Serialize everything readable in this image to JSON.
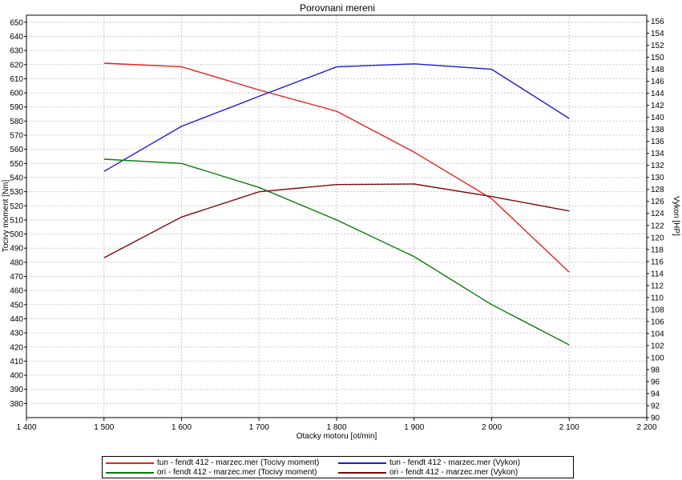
{
  "chart_data": {
    "type": "line",
    "title": "Porovnani mereni",
    "xlabel": "Otacky motoru [ot/min]",
    "ylabel_left": "Tocivy moment [Nm]",
    "ylabel_right": "Vykon [HP]",
    "xlim": [
      1400,
      2200
    ],
    "ylim_left": [
      370,
      655
    ],
    "ylim_right": [
      90,
      157
    ],
    "x_ticks": [
      "1 400",
      "1 500",
      "1 600",
      "1 700",
      "1 800",
      "1 900",
      "2 000",
      "2 100",
      "2 200"
    ],
    "x_tick_values": [
      1400,
      1500,
      1600,
      1700,
      1800,
      1900,
      2000,
      2100,
      2200
    ],
    "y_left_ticks": [
      380,
      390,
      400,
      410,
      420,
      430,
      440,
      450,
      460,
      470,
      480,
      490,
      500,
      510,
      520,
      530,
      540,
      550,
      560,
      570,
      580,
      590,
      600,
      610,
      620,
      630,
      640,
      650
    ],
    "y_right_ticks": [
      90,
      92,
      94,
      96,
      98,
      100,
      102,
      104,
      106,
      108,
      110,
      112,
      114,
      116,
      118,
      120,
      122,
      124,
      126,
      128,
      130,
      132,
      134,
      136,
      138,
      140,
      142,
      144,
      146,
      148,
      150,
      152,
      154,
      156
    ],
    "grid": true,
    "legend_position": "bottom",
    "series": [
      {
        "name": "tun - fendt 412 - marzec.mer  (Tocivy moment)",
        "axis": "left",
        "color": "#e8201c",
        "x": [
          1500,
          1600,
          1700,
          1800,
          1900,
          2000,
          2100
        ],
        "y": [
          621,
          618.5,
          602,
          587,
          558,
          525,
          473
        ]
      },
      {
        "name": "tun - fendt 412 - marzec.mer  (Vykon)",
        "axis": "right",
        "color": "#1a1adf",
        "x": [
          1500,
          1600,
          1700,
          1800,
          1900,
          2000,
          2100
        ],
        "y": [
          131,
          138.5,
          143.5,
          148.4,
          148.9,
          148,
          139.8
        ]
      },
      {
        "name": "ori - fendt 412 - marzec.mer  (Tocivy moment)",
        "axis": "left",
        "color": "#0a7a0a",
        "x": [
          1500,
          1600,
          1700,
          1800,
          1900,
          2000,
          2100
        ],
        "y": [
          553,
          550,
          533,
          510,
          484,
          450,
          421.5
        ]
      },
      {
        "name": "ori - fendt 412 - marzec.mer  (Vykon)",
        "axis": "right",
        "color": "#7a0a0a",
        "x": [
          1500,
          1600,
          1700,
          1800,
          1900,
          2000,
          2100
        ],
        "y": [
          116.6,
          123.4,
          127.6,
          128.8,
          128.9,
          126.8,
          124.4
        ]
      }
    ]
  }
}
